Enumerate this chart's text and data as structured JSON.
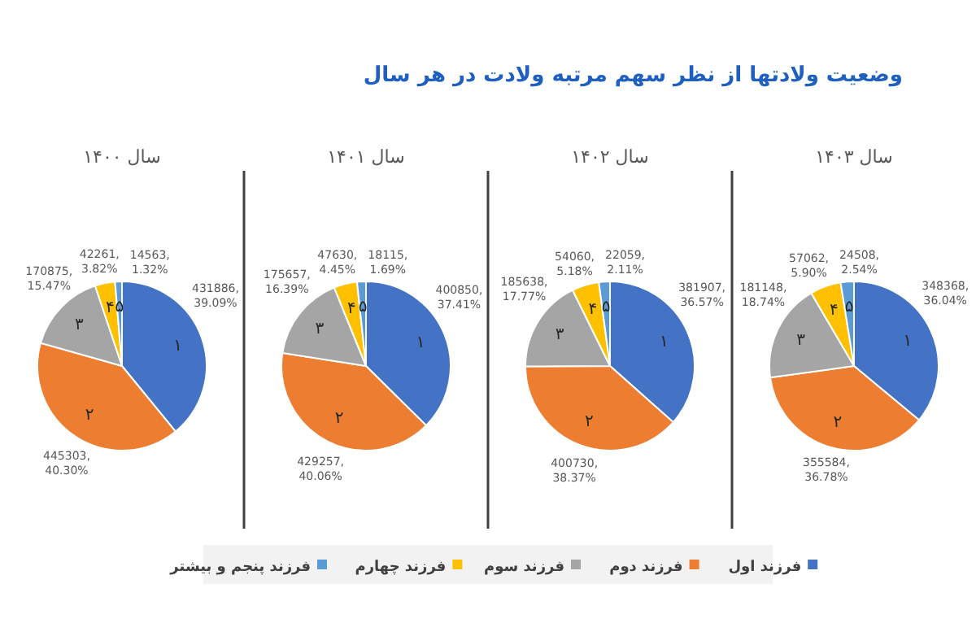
{
  "chart_data": [
    {
      "type": "pie",
      "subtitle": "سال ۱۴۰۰",
      "legend": "bottom",
      "categories": [
        "فرزند اول",
        "فرزند دوم",
        "فرزند سوم",
        "فرزند چهارم",
        "فرزند پنجم و بیشتر"
      ],
      "values": [
        431886,
        445303,
        170875,
        42261,
        14563
      ],
      "colors": [
        "#4472c4",
        "#ed7d31",
        "#a5a5a5",
        "#ffc000",
        "#5b9bd5"
      ],
      "value_labels": [
        "431886,\n39.09%",
        "445303,\n40.30%",
        "170875,\n15.47%",
        "42261,\n3.82%",
        "14563,\n1.32%"
      ],
      "annotations": [
        "۱",
        "۲",
        "۳",
        "۴",
        "۵"
      ]
    },
    {
      "type": "pie",
      "subtitle": "سال ۱۴۰۱",
      "categories": [
        null,
        null,
        null,
        null,
        null
      ],
      "values": [
        400850,
        429257,
        175657,
        47630,
        18115
      ],
      "colors": [
        "#4472c4",
        "#ed7d31",
        "#a5a5a5",
        "#ffc000",
        "#5b9bd5"
      ],
      "value_labels": [
        "400850,\n37.41%",
        "429257,\n40.06%",
        "175657,\n16.39%",
        "47630,\n4.45%",
        "18115,\n1.69%"
      ],
      "annotations": [
        "۱",
        "۲",
        "۳",
        "۴",
        "۵"
      ]
    },
    {
      "type": "pie",
      "title": "وضعیت ولادتها از نظر سهم مرتبه ولادت در هر سال",
      "subtitle": "سال ۱۴۰۲",
      "categories": [
        null,
        null,
        null,
        null,
        null
      ],
      "values": [
        381907,
        400730,
        185638,
        54060,
        22059
      ],
      "colors": [
        "#4472c4",
        "#ed7d31",
        "#a5a5a5",
        "#ffc000",
        "#5b9bd5"
      ],
      "value_labels": [
        "381907,\n36.57%",
        "400730,\n38.37%",
        "185638,\n17.77%",
        "54060,\n5.18%",
        "22059,\n2.11%"
      ],
      "annotations": [
        "۱",
        "۲",
        "۳",
        "۴",
        "۵"
      ]
    },
    {
      "type": "pie",
      "subtitle": "سال ۱۴۰۳",
      "categories": [
        null,
        null,
        null,
        null,
        null
      ],
      "values": [
        348368,
        355584,
        181148,
        57062,
        24508
      ],
      "colors": [
        "#4472c4",
        "#ed7d31",
        "#a5a5a5",
        "#ffc000",
        "#5b9bd5"
      ],
      "value_labels": [
        "348368,\n36.04%",
        "355584,\n36.78%",
        "181148,\n18.74%",
        "57062,\n5.90%",
        "24508,\n2.54%"
      ],
      "annotations": [
        "۱",
        "۲",
        "۳",
        "۴",
        "۵"
      ]
    }
  ]
}
